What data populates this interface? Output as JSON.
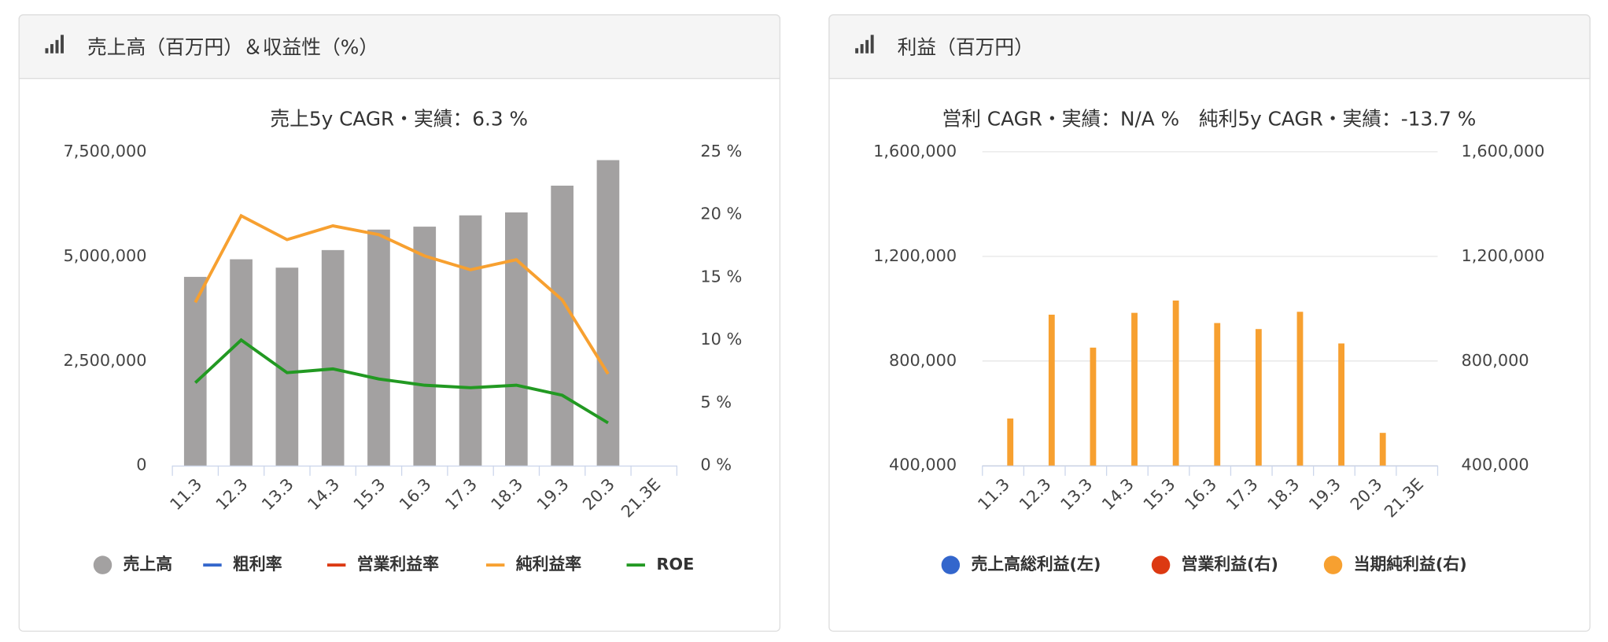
{
  "chart_data": [
    {
      "type": "bar",
      "title": "売上高（百万円）＆収益性（%）",
      "subtitle": "売上5y CAGR・実績：6.3 %",
      "categories": [
        "11.3",
        "12.3",
        "13.3",
        "14.3",
        "15.3",
        "16.3",
        "17.3",
        "18.3",
        "19.3",
        "20.3",
        "21.3E"
      ],
      "series": [
        {
          "name": "売上高",
          "type": "bar",
          "axis": "y",
          "color": "#a3a1a1",
          "values": [
            4510000,
            4930000,
            4730000,
            5150000,
            5640000,
            5710000,
            5980000,
            6050000,
            6690000,
            7300000,
            null
          ]
        },
        {
          "name": "粗利率",
          "type": "line",
          "axis": "y2",
          "color": "#3366cc",
          "values": [
            null,
            null,
            null,
            null,
            null,
            null,
            null,
            null,
            null,
            null,
            null
          ]
        },
        {
          "name": "営業利益率",
          "type": "line",
          "axis": "y2",
          "color": "#dc3912",
          "values": [
            null,
            null,
            null,
            null,
            null,
            null,
            null,
            null,
            null,
            null,
            null
          ]
        },
        {
          "name": "純利益率",
          "type": "line",
          "axis": "y2",
          "color": "#f7a030",
          "values": [
            13.0,
            19.9,
            18.0,
            19.1,
            18.4,
            16.7,
            15.6,
            16.4,
            13.2,
            7.3,
            null
          ]
        },
        {
          "name": "ROE",
          "type": "line",
          "axis": "y2",
          "color": "#229922",
          "values": [
            6.6,
            10.0,
            7.4,
            7.7,
            6.9,
            6.4,
            6.2,
            6.4,
            5.6,
            3.4,
            null
          ]
        }
      ],
      "ylim": [
        0,
        7500000
      ],
      "yticks": [
        0,
        {
          "value": 2500000,
          "label": "2,500,000"
        },
        {
          "value": 5000000,
          "label": "5,000,000"
        },
        {
          "value": 7500000,
          "label": "7,500,000"
        }
      ],
      "y2lim": [
        0,
        25
      ],
      "y2ticks": [
        {
          "value": 0,
          "label": "0 %"
        },
        {
          "value": 5,
          "label": "5 %"
        },
        {
          "value": 10,
          "label": "10 %"
        },
        {
          "value": 15,
          "label": "15 %"
        },
        {
          "value": 20,
          "label": "20 %"
        },
        {
          "value": 25,
          "label": "25 %"
        }
      ],
      "grid": false
    },
    {
      "type": "bar",
      "title": "利益（百万円）",
      "subtitle": "営利 CAGR・実績：N/A %　純利5y CAGR・実績：-13.7 %",
      "categories": [
        "11.3",
        "12.3",
        "13.3",
        "14.3",
        "15.3",
        "16.3",
        "17.3",
        "18.3",
        "19.3",
        "20.3",
        "21.3E"
      ],
      "series": [
        {
          "name": "売上高総利益(左)",
          "type": "bar",
          "axis": "y",
          "color": "#3366cc",
          "values": [
            null,
            null,
            null,
            null,
            null,
            null,
            null,
            null,
            null,
            null,
            null
          ]
        },
        {
          "name": "営業利益(右)",
          "type": "bar",
          "axis": "y2",
          "color": "#dc3912",
          "values": [
            null,
            null,
            null,
            null,
            null,
            null,
            null,
            null,
            null,
            null,
            null
          ]
        },
        {
          "name": "当期純利益(右)",
          "type": "bar",
          "axis": "y2",
          "color": "#f7a030",
          "values": [
            580000,
            977000,
            851000,
            984000,
            1031000,
            945000,
            922000,
            988000,
            867000,
            525000,
            null
          ]
        }
      ],
      "ylim": [
        400000,
        1600000
      ],
      "yticks": [
        {
          "value": 400000,
          "label": "400,000"
        },
        {
          "value": 800000,
          "label": "800,000"
        },
        {
          "value": 1200000,
          "label": "1,200,000"
        },
        {
          "value": 1600000,
          "label": "1,600,000"
        }
      ],
      "y2lim": [
        400000,
        1600000
      ],
      "y2ticks": [
        {
          "value": 400000,
          "label": "400,000"
        },
        {
          "value": 800000,
          "label": "800,000"
        },
        {
          "value": 1200000,
          "label": "1,200,000"
        },
        {
          "value": 1600000,
          "label": "1,600,000"
        }
      ],
      "grid": true
    }
  ]
}
